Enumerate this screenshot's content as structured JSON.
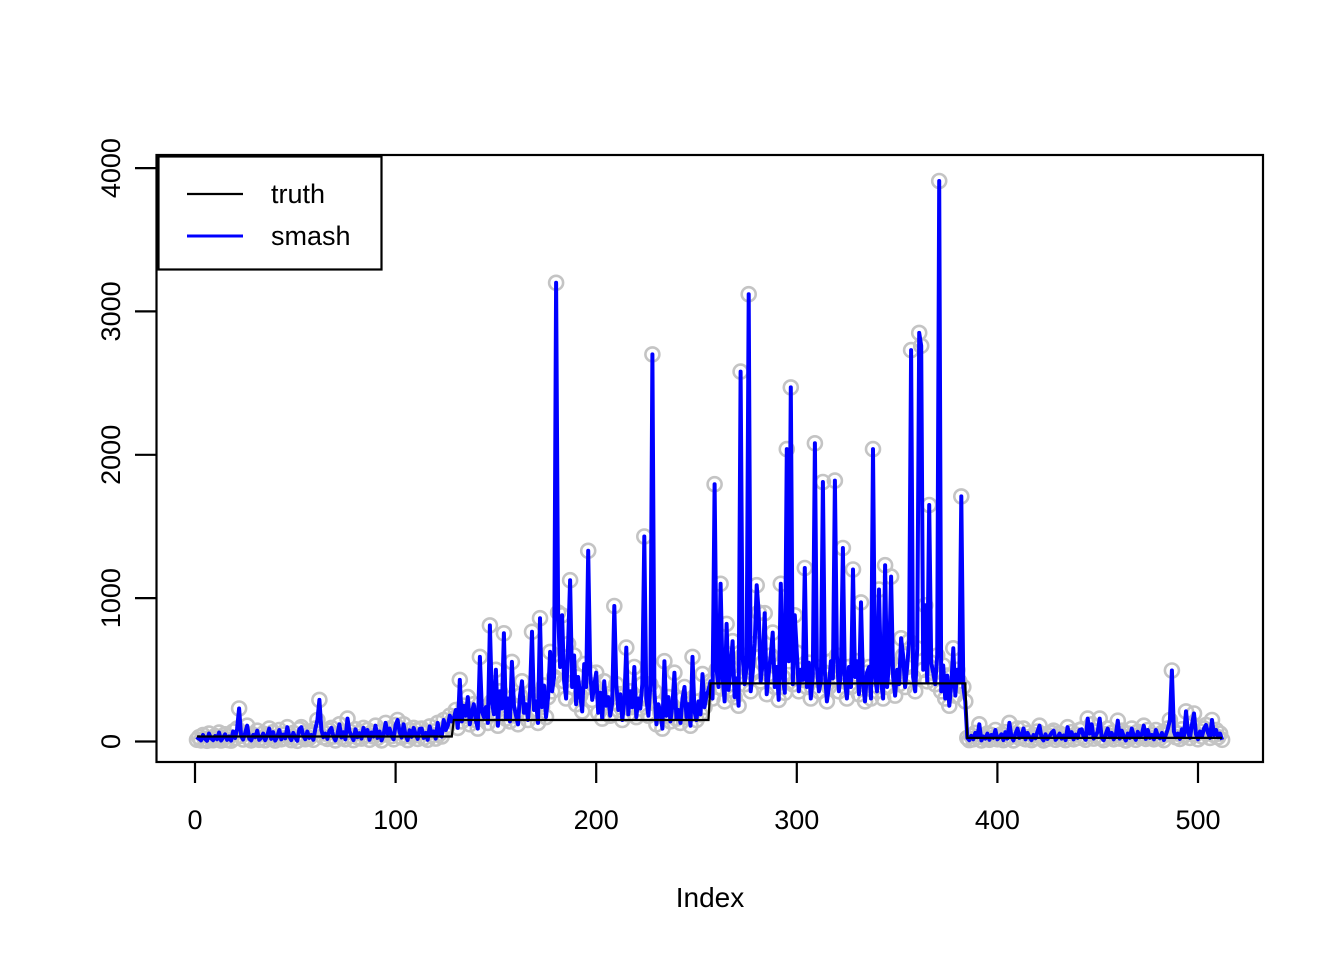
{
  "chart_data": {
    "type": "line",
    "title": "",
    "xlabel": "Index",
    "ylabel": "",
    "x_ticks": [
      0,
      100,
      200,
      300,
      400,
      500
    ],
    "y_ticks": [
      0,
      1000,
      2000,
      3000,
      4000
    ],
    "xlim": [
      -19,
      532
    ],
    "ylim": [
      -143,
      4090
    ],
    "n_points": 512,
    "grid": false,
    "legend": {
      "position": "topleft",
      "entries": [
        {
          "label": "truth",
          "color": "#000000"
        },
        {
          "label": "smash",
          "color": "#0000ff"
        }
      ]
    },
    "point_marker": {
      "shape": "open-circle",
      "color": "#c4c4c4"
    },
    "colors": {
      "smash_line": "#0000ff",
      "truth_line": "#000000",
      "marker": "#c4c4c4",
      "axis": "#000000"
    },
    "series": [
      {
        "name": "truth",
        "type": "step",
        "color": "#000000",
        "segments": [
          {
            "from": 1,
            "to": 128,
            "value": 35
          },
          {
            "from": 129,
            "to": 256,
            "value": 150
          },
          {
            "from": 257,
            "to": 384,
            "value": 405
          },
          {
            "from": 385,
            "to": 512,
            "value": 25
          }
        ]
      },
      {
        "name": "smash",
        "type": "line",
        "color": "#0000ff",
        "values": [
          12,
          30,
          8,
          45,
          18,
          5,
          55,
          22,
          9,
          38,
          15,
          62,
          7,
          28,
          50,
          11,
          35,
          6,
          70,
          24,
          90,
          230,
          40,
          14,
          58,
          110,
          20,
          8,
          46,
          30,
          75,
          12,
          25,
          55,
          9,
          40,
          90,
          18,
          65,
          7,
          32,
          80,
          15,
          48,
          22,
          100,
          35,
          10,
          60,
          28,
          5,
          85,
          100,
          40,
          16,
          70,
          25,
          45,
          12,
          90,
          150,
          290,
          80,
          30,
          55,
          18,
          75,
          95,
          35,
          8,
          50,
          120,
          28,
          65,
          15,
          160,
          70,
          40,
          10,
          85,
          30,
          58,
          20,
          95,
          45,
          80,
          12,
          62,
          35,
          110,
          25,
          70,
          8,
          48,
          130,
          55,
          90,
          38,
          15,
          115,
          150,
          65,
          28,
          120,
          42,
          10,
          78,
          33,
          95,
          50,
          18,
          88,
          90,
          25,
          60,
          12,
          105,
          45,
          70,
          20,
          130,
          55,
          35,
          150,
          80,
          110,
          180,
          140,
          160,
          220,
          95,
          430,
          140,
          250,
          180,
          310,
          120,
          200,
          260,
          150,
          90,
          590,
          210,
          170,
          240,
          130,
          810,
          280,
          190,
          500,
          110,
          350,
          230,
          755,
          160,
          300,
          140,
          555,
          250,
          180,
          120,
          320,
          420,
          200,
          260,
          150,
          340,
          765,
          220,
          280,
          130,
          860,
          240,
          390,
          170,
          310,
          625,
          350,
          450,
          3200,
          900,
          520,
          880,
          420,
          300,
          680,
          1125,
          380,
          600,
          260,
          450,
          320,
          210,
          540,
          380,
          1330,
          480,
          290,
          390,
          480,
          200,
          340,
          160,
          420,
          250,
          310,
          180,
          270,
          945,
          400,
          220,
          330,
          150,
          280,
          655,
          190,
          350,
          240,
          520,
          170,
          300,
          230,
          400,
          1430,
          300,
          180,
          400,
          2700,
          350,
          120,
          260,
          200,
          90,
          560,
          180,
          310,
          140,
          250,
          480,
          160,
          220,
          130,
          300,
          380,
          170,
          260,
          110,
          590,
          210,
          150,
          280,
          190,
          470,
          240,
          320,
          360,
          420,
          300,
          1795,
          500,
          380,
          1100,
          450,
          280,
          820,
          360,
          520,
          700,
          310,
          440,
          250,
          2580,
          600,
          400,
          520,
          3120,
          350,
          480,
          680,
          1090,
          900,
          420,
          550,
          895,
          330,
          470,
          600,
          760,
          380,
          520,
          290,
          1100,
          450,
          340,
          2040,
          560,
          2470,
          400,
          880,
          620,
          350,
          500,
          430,
          1210,
          380,
          550,
          300,
          460,
          2080,
          520,
          350,
          420,
          1810,
          480,
          280,
          380,
          560,
          440,
          1820,
          600,
          350,
          480,
          1350,
          420,
          300,
          520,
          380,
          1200,
          450,
          560,
          330,
          970,
          400,
          280,
          480,
          520,
          300,
          2040,
          450,
          350,
          1060,
          420,
          300,
          1230,
          380,
          550,
          1150,
          450,
          320,
          500,
          400,
          720,
          600,
          380,
          520,
          700,
          2730,
          450,
          350,
          650,
          2850,
          2760,
          500,
          950,
          420,
          1650,
          550,
          480,
          400,
          600,
          3910,
          350,
          530,
          300,
          460,
          250,
          400,
          650,
          320,
          500,
          420,
          1710,
          380,
          280,
          25,
          10,
          40,
          15,
          60,
          30,
          120,
          8,
          35,
          20,
          55,
          12,
          45,
          25,
          80,
          15,
          30,
          50,
          10,
          65,
          20,
          130,
          35,
          8,
          55,
          90,
          25,
          40,
          90,
          15,
          60,
          30,
          10,
          45,
          22,
          70,
          110,
          28,
          8,
          50,
          18,
          38,
          60,
          75,
          12,
          30,
          55,
          20,
          42,
          10,
          100,
          35,
          65,
          15,
          48,
          25,
          80,
          85,
          30,
          12,
          160,
          55,
          120,
          20,
          40,
          70,
          160,
          25,
          10,
          50,
          90,
          30,
          60,
          15,
          45,
          145,
          20,
          75,
          35,
          8,
          55,
          25,
          90,
          40,
          12,
          68,
          30,
          50,
          110,
          18,
          80,
          25,
          45,
          15,
          80,
          38,
          22,
          60,
          10,
          48,
          90,
          150,
          495,
          70,
          30,
          55,
          18,
          85,
          40,
          210,
          65,
          25,
          120,
          195,
          50,
          15,
          70,
          35,
          90,
          115,
          60,
          25,
          150,
          45,
          80,
          30,
          55,
          12
        ]
      }
    ]
  }
}
